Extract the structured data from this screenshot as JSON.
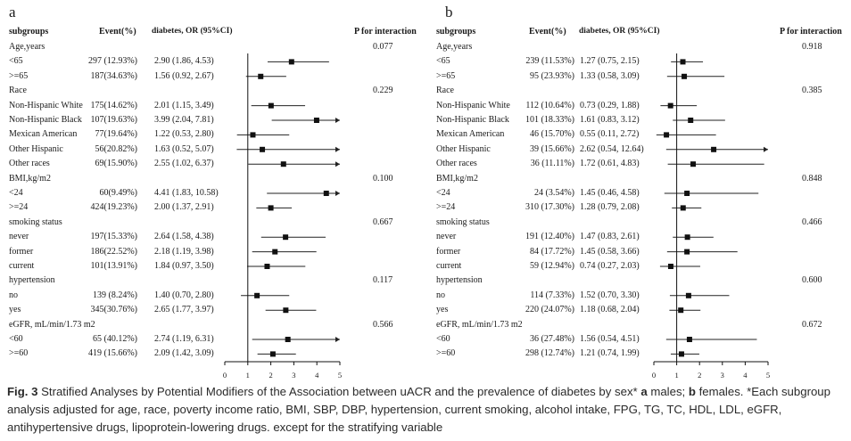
{
  "panels": [
    {
      "label": "a",
      "headers": {
        "subgroups": "subgroups",
        "event": "Event(%)",
        "or": "diabetes,  OR (95%CI)",
        "p": "P for interaction"
      },
      "axis_ticks": [
        "0",
        "1",
        "2",
        "3",
        "4",
        "5"
      ],
      "rows": [
        {
          "label": "Age,years",
          "p": "0.077"
        },
        {
          "label": "<65",
          "event": "297 (12.93%)",
          "or": "2.90 (1.86, 4.53)"
        },
        {
          "label": ">=65",
          "event": "187(34.63%)",
          "or": "1.56 (0.92, 2.67)"
        },
        {
          "label": "Race",
          "p": "0.229"
        },
        {
          "label": "Non-Hispanic White",
          "event": "175(14.62%)",
          "or": "2.01 (1.15, 3.49)"
        },
        {
          "label": "Non-Hispanic Black",
          "event": "107(19.63%)",
          "or": "3.99 (2.04, 7.81)"
        },
        {
          "label": "Mexican American",
          "event": "77(19.64%)",
          "or": "1.22 (0.53, 2.80)"
        },
        {
          "label": "Other Hispanic",
          "event": "56(20.82%)",
          "or": "1.63 (0.52, 5.07)"
        },
        {
          "label": "Other races",
          "event": "69(15.90%)",
          "or": "2.55 (1.02, 6.37)"
        },
        {
          "label": "BMI,kg/m2",
          "p": "0.100"
        },
        {
          "label": "<24",
          "event": "60(9.49%)",
          "or": "4.41 (1.83, 10.58)"
        },
        {
          "label": ">=24",
          "event": "424(19.23%)",
          "or": "2.00 (1.37, 2.91)"
        },
        {
          "label": "smoking status",
          "p": "0.667"
        },
        {
          "label": "never",
          "event": "197(15.33%)",
          "or": "2.64 (1.58, 4.38)"
        },
        {
          "label": "former",
          "event": "186(22.52%)",
          "or": "2.18 (1.19, 3.98)"
        },
        {
          "label": "current",
          "event": "101(13.91%)",
          "or": "1.84 (0.97, 3.50)"
        },
        {
          "label": "hypertension",
          "p": "0.117"
        },
        {
          "label": "no",
          "event": "139 (8.24%)",
          "or": "1.40 (0.70, 2.80)"
        },
        {
          "label": "yes",
          "event": "345(30.76%)",
          "or": "2.65 (1.77, 3.97)"
        },
        {
          "label": "eGFR, mL/min/1.73 m2",
          "p": "0.566"
        },
        {
          "label": "<60",
          "event": "65 (40.12%)",
          "or": "2.74 (1.19, 6.31)"
        },
        {
          "label": ">=60",
          "event": "419 (15.66%)",
          "or": "2.09 (1.42, 3.09)"
        }
      ]
    },
    {
      "label": "b",
      "headers": {
        "subgroups": "subgroups",
        "event": "Event(%)",
        "or": "diabetes,  OR (95%CI)",
        "p": "P for interaction"
      },
      "axis_ticks": [
        "0",
        "1",
        "2",
        "3",
        "4",
        "5"
      ],
      "rows": [
        {
          "label": "Age,years",
          "p": "0.918"
        },
        {
          "label": "<65",
          "event": "239 (11.53%)",
          "or": "1.27 (0.75, 2.15)"
        },
        {
          "label": ">=65",
          "event": "95 (23.93%)",
          "or": "1.33 (0.58, 3.09)"
        },
        {
          "label": "Race",
          "p": "0.385"
        },
        {
          "label": "Non-Hispanic White",
          "event": "112 (10.64%)",
          "or": "0.73 (0.29, 1.88)"
        },
        {
          "label": "Non-Hispanic Black",
          "event": "101 (18.33%)",
          "or": "1.61 (0.83, 3.12)"
        },
        {
          "label": "Mexican American",
          "event": "46 (15.70%)",
          "or": "0.55 (0.11, 2.72)"
        },
        {
          "label": "Other Hispanic",
          "event": "39 (15.66%)",
          "or": "2.62 (0.54, 12.64)"
        },
        {
          "label": "Other races",
          "event": "36 (11.11%)",
          "or": "1.72 (0.61, 4.83)"
        },
        {
          "label": "BMI,kg/m2",
          "p": "0.848"
        },
        {
          "label": "<24",
          "event": "24 (3.54%)",
          "or": "1.45 (0.46, 4.58)"
        },
        {
          "label": ">=24",
          "event": "310 (17.30%)",
          "or": "1.28 (0.79, 2.08)"
        },
        {
          "label": "smoking status",
          "p": "0.466"
        },
        {
          "label": "never",
          "event": "191 (12.40%)",
          "or": "1.47 (0.83, 2.61)"
        },
        {
          "label": "former",
          "event": "84 (17.72%)",
          "or": "1.45 (0.58, 3.66)"
        },
        {
          "label": "current",
          "event": "59 (12.94%)",
          "or": "0.74 (0.27, 2.03)"
        },
        {
          "label": "hypertension",
          "p": "0.600"
        },
        {
          "label": "no",
          "event": "114 (7.33%)",
          "or": "1.52 (0.70, 3.30)"
        },
        {
          "label": "yes",
          "event": "220 (24.07%)",
          "or": "1.18 (0.68, 2.04)"
        },
        {
          "label": "eGFR, mL/min/1.73 m2",
          "p": "0.672"
        },
        {
          "label": "<60",
          "event": "36 (27.48%)",
          "or": "1.56 (0.54, 4.51)"
        },
        {
          "label": ">=60",
          "event": "298 (12.74%)",
          "or": "1.21 (0.74, 1.99)"
        }
      ]
    }
  ],
  "chart_data": [
    {
      "type": "forest",
      "panel": "a",
      "xlim": [
        0,
        5
      ],
      "reference_line": 1,
      "categories": [
        "<65",
        ">=65",
        "Non-Hispanic White",
        "Non-Hispanic Black",
        "Mexican American",
        "Other Hispanic",
        "Other races",
        "<24",
        ">=24",
        "never",
        "former",
        "current",
        "no",
        "yes",
        "<60",
        ">=60"
      ],
      "or": [
        2.9,
        1.56,
        2.01,
        3.99,
        1.22,
        1.63,
        2.55,
        4.41,
        2.0,
        2.64,
        2.18,
        1.84,
        1.4,
        2.65,
        2.74,
        2.09
      ],
      "lower": [
        1.86,
        0.92,
        1.15,
        2.04,
        0.53,
        0.52,
        1.02,
        1.83,
        1.37,
        1.58,
        1.19,
        0.97,
        0.7,
        1.77,
        1.19,
        1.42
      ],
      "upper": [
        4.53,
        2.67,
        3.49,
        7.81,
        2.8,
        5.07,
        6.37,
        10.58,
        2.91,
        4.38,
        3.98,
        3.5,
        2.8,
        3.97,
        6.31,
        3.09
      ]
    },
    {
      "type": "forest",
      "panel": "b",
      "xlim": [
        0,
        5
      ],
      "reference_line": 1,
      "categories": [
        "<65",
        ">=65",
        "Non-Hispanic White",
        "Non-Hispanic Black",
        "Mexican American",
        "Other Hispanic",
        "Other races",
        "<24",
        ">=24",
        "never",
        "former",
        "current",
        "no",
        "yes",
        "<60",
        ">=60"
      ],
      "or": [
        1.27,
        1.33,
        0.73,
        1.61,
        0.55,
        2.62,
        1.72,
        1.45,
        1.28,
        1.47,
        1.45,
        0.74,
        1.52,
        1.18,
        1.56,
        1.21
      ],
      "lower": [
        0.75,
        0.58,
        0.29,
        0.83,
        0.11,
        0.54,
        0.61,
        0.46,
        0.79,
        0.83,
        0.58,
        0.27,
        0.7,
        0.68,
        0.54,
        0.74
      ],
      "upper": [
        2.15,
        3.09,
        1.88,
        3.12,
        2.72,
        12.64,
        4.83,
        4.58,
        2.08,
        2.61,
        3.66,
        2.03,
        3.3,
        2.04,
        4.51,
        1.99
      ]
    }
  ],
  "caption": {
    "fig": "Fig. 3",
    "text_1": "Stratified Analyses by Potential Modifiers of the Association between uACR and the prevalence of diabetes by sex*",
    "a": "a",
    "males": "males;",
    "b": "b",
    "rest": "females. *Each subgroup analysis adjusted for age, race, poverty income ratio, BMI, SBP, DBP, hypertension, current smoking, alcohol intake, FPG, TG, TC, HDL, LDL, eGFR, antihypertensive drugs, lipoprotein-lowering drugs. except for the stratifying variable"
  }
}
